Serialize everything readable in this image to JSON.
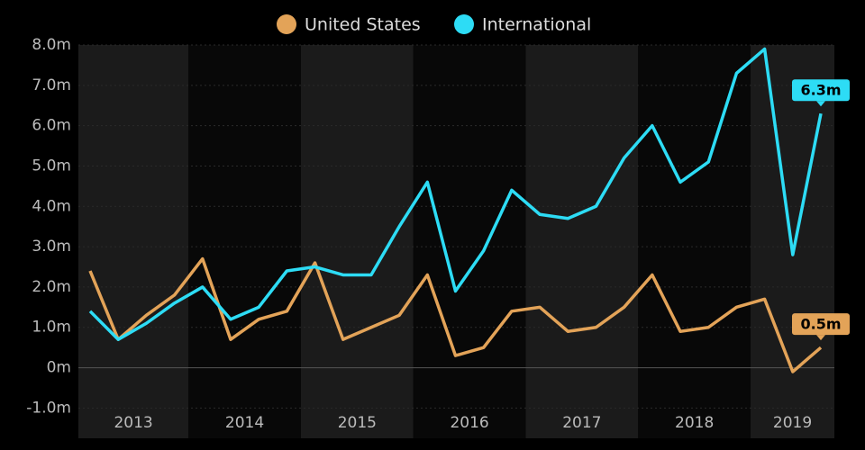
{
  "chart_data": {
    "type": "line",
    "years": [
      "2013",
      "2014",
      "2015",
      "2016",
      "2017",
      "2018",
      "2019"
    ],
    "series": [
      {
        "name": "United States",
        "color": "#e3a358",
        "values": [
          2.4,
          0.7,
          1.3,
          1.8,
          2.7,
          0.7,
          1.2,
          1.4,
          2.6,
          0.7,
          1.0,
          1.3,
          2.3,
          0.3,
          0.5,
          1.4,
          1.5,
          0.9,
          1.0,
          1.5,
          2.3,
          0.9,
          1.0,
          1.5,
          1.7,
          -0.1,
          0.5
        ],
        "value_labels": [
          null,
          null,
          null,
          null,
          null,
          null,
          null,
          null,
          null,
          null,
          null,
          null,
          null,
          null,
          null,
          null,
          null,
          null,
          null,
          null,
          null,
          null,
          null,
          null,
          null,
          null,
          "0.5m"
        ]
      },
      {
        "name": "International",
        "color": "#2ddcf5",
        "values": [
          1.4,
          0.7,
          1.1,
          1.6,
          2.0,
          1.2,
          1.5,
          2.4,
          2.5,
          2.3,
          2.3,
          3.5,
          4.6,
          1.9,
          2.9,
          4.4,
          3.8,
          3.7,
          4.0,
          5.2,
          6.0,
          4.6,
          5.1,
          7.3,
          7.9,
          2.8,
          6.3
        ],
        "value_labels": [
          null,
          null,
          null,
          null,
          null,
          null,
          null,
          null,
          null,
          null,
          null,
          null,
          null,
          null,
          null,
          null,
          null,
          null,
          null,
          null,
          null,
          null,
          null,
          null,
          null,
          null,
          "6.3m"
        ]
      }
    ],
    "ylim": [
      -1.75,
      8.0
    ],
    "yticks": [
      {
        "value": -1.0,
        "label": "-1.0m"
      },
      {
        "value": 0,
        "label": "0m"
      },
      {
        "value": 1.0,
        "label": "1.0m"
      },
      {
        "value": 2.0,
        "label": "2.0m"
      },
      {
        "value": 3.0,
        "label": "3.0m"
      },
      {
        "value": 4.0,
        "label": "4.0m"
      },
      {
        "value": 5.0,
        "label": "5.0m"
      },
      {
        "value": 6.0,
        "label": "6.0m"
      },
      {
        "value": 7.0,
        "label": "7.0m"
      },
      {
        "value": 8.0,
        "label": "8.0m"
      }
    ],
    "grid": true
  }
}
